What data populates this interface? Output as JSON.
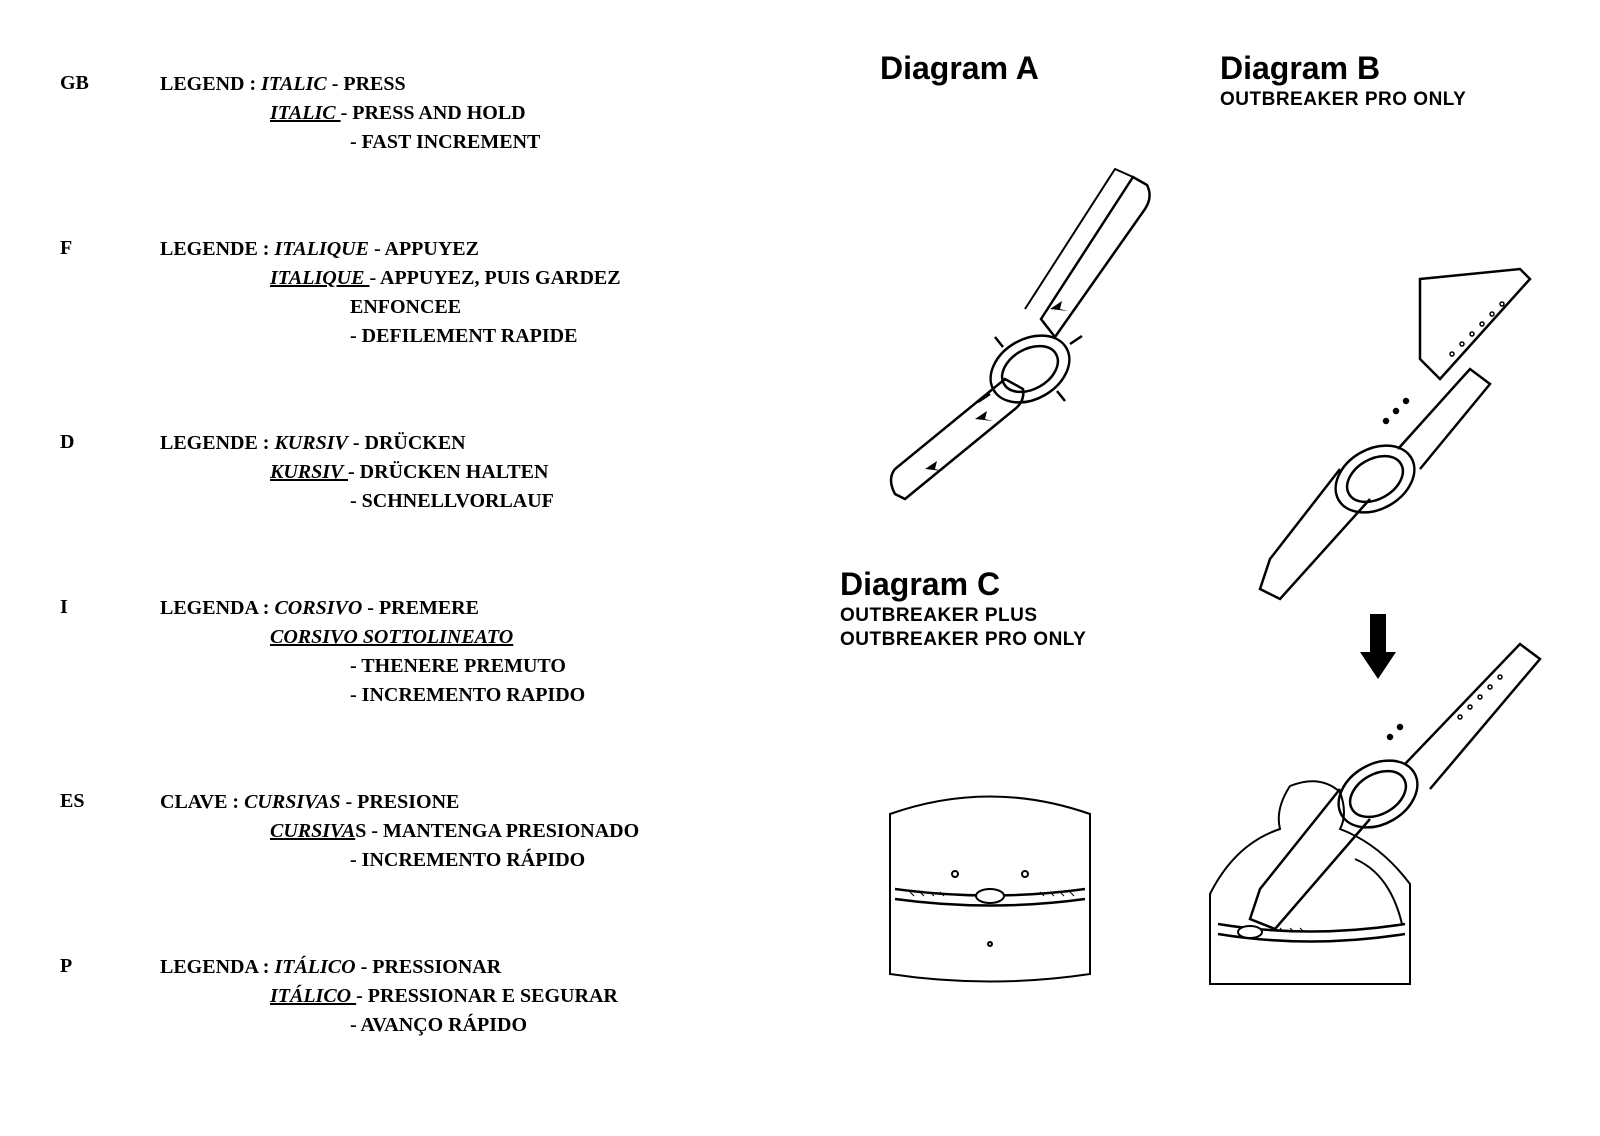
{
  "colors": {
    "bg": "#ffffff",
    "fg": "#000000"
  },
  "diagrams": {
    "a": {
      "title": "Diagram A"
    },
    "b": {
      "title": "Diagram B",
      "subtitle": "OUTBREAKER PRO ONLY"
    },
    "c": {
      "title": "Diagram C",
      "subtitle1": "OUTBREAKER PLUS",
      "subtitle2": "OUTBREAKER PRO ONLY"
    }
  },
  "legends": [
    {
      "code": "GB",
      "lines": [
        {
          "prefix": "LEGEND  : ",
          "styled": "ITALIC",
          "style": "it",
          "suffix": " - PRESS"
        },
        {
          "indent": 1,
          "styled": "ITALIC ",
          "style": "it ul",
          "suffix": "- PRESS AND HOLD"
        },
        {
          "indent": 2,
          "suffix": "- FAST INCREMENT"
        }
      ]
    },
    {
      "code": "F",
      "lines": [
        {
          "prefix": "LEGENDE  : ",
          "styled": "ITALIQUE",
          "style": "it",
          "suffix": " - APPUYEZ"
        },
        {
          "indent": 1,
          "styled": "ITALIQUE ",
          "style": "it ul",
          "suffix": "- APPUYEZ, PUIS GARDEZ"
        },
        {
          "indent": 2,
          "suffix": "ENFONCEE"
        },
        {
          "indent": 2,
          "suffix": "- DEFILEMENT RAPIDE"
        }
      ]
    },
    {
      "code": "D",
      "lines": [
        {
          "prefix": "LEGENDE  : ",
          "styled": "KURSIV",
          "style": "it",
          "suffix": " - DRÜCKEN"
        },
        {
          "indent": 1,
          "styled": "KURSIV ",
          "style": "it ul",
          "suffix": "- DRÜCKEN HALTEN"
        },
        {
          "indent": 2,
          "suffix": "- SCHNELLVORLAUF"
        }
      ]
    },
    {
      "code": "I",
      "lines": [
        {
          "prefix": "LEGENDA  : ",
          "styled": "CORSIVO",
          "style": "it",
          "suffix": " - PREMERE"
        },
        {
          "indent": 1,
          "styled": "CORSIVO SOTTOLINEATO",
          "style": "it ul",
          "suffix": ""
        },
        {
          "indent": 2,
          "suffix": "- THENERE PREMUTO"
        },
        {
          "indent": 2,
          "suffix": "- INCREMENTO RAPIDO"
        }
      ]
    },
    {
      "code": "ES",
      "lines": [
        {
          "prefix": "CLAVE : ",
          "styled": "CURSIVAS",
          "style": "it",
          "suffix": " - PRESIONE"
        },
        {
          "indent": 1,
          "styled": "CURSIVA",
          "style": "it ul",
          "suffix": "S - MANTENGA PRESIONADO"
        },
        {
          "indent": 2,
          "suffix": "- INCREMENTO RÁPIDO"
        }
      ]
    },
    {
      "code": "P",
      "lines": [
        {
          "prefix": "LEGENDA  : ",
          "styled": "ITÁLICO",
          "style": "it",
          "suffix": " - PRESSIONAR"
        },
        {
          "indent": 1,
          "styled": "ITÁLICO ",
          "style": "it ul",
          "suffix": "- PRESSIONAR E SEGURAR"
        },
        {
          "indent": 2,
          "suffix": "- AVANÇO RÁPIDO"
        }
      ]
    }
  ]
}
